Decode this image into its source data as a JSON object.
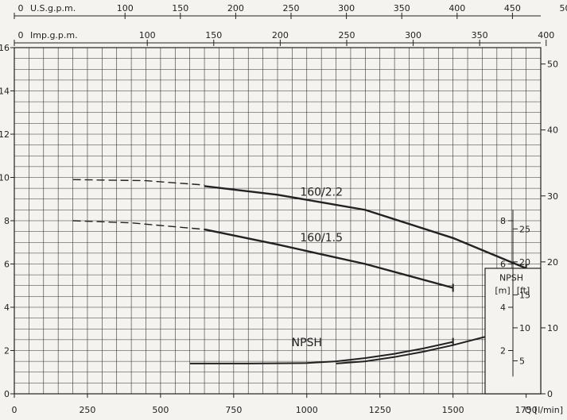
{
  "chart_data": {
    "type": "line",
    "title": "",
    "xlabel": "Q [l/min]",
    "ylabel": "",
    "xlim": [
      0,
      1800
    ],
    "ylim": [
      0,
      16
    ],
    "x_ticks": [
      0,
      250,
      500,
      750,
      1000,
      1250,
      1500,
      1750
    ],
    "y_ticks": [
      0,
      2,
      4,
      6,
      8,
      10,
      12,
      14,
      16
    ],
    "grid": true,
    "right_axis": {
      "ticks": [
        0,
        10,
        20,
        30,
        40,
        50
      ],
      "per_unit_left": 3.28
    },
    "top_axes": [
      {
        "label": "U.S.g.p.m.",
        "ticks": [
          0,
          100,
          150,
          200,
          250,
          300,
          350,
          400,
          450,
          500
        ],
        "lpm_per_unit": 3.785
      },
      {
        "label": "Imp.g.p.m.",
        "ticks": [
          0,
          100,
          150,
          200,
          250,
          300,
          350,
          400
        ],
        "lpm_per_unit": 4.546
      }
    ],
    "npsh_scale": {
      "m_label": "[m]",
      "ft_label": "[ft]",
      "header": "NPSH",
      "m_ticks": [
        2,
        4,
        6,
        8
      ],
      "ft_ticks": [
        5,
        10,
        15,
        20,
        25
      ]
    },
    "series": [
      {
        "name": "160/2.2",
        "dashed_x": [
          200,
          450,
          650
        ],
        "dashed_y": [
          9.9,
          9.85,
          9.65
        ],
        "x": [
          650,
          900,
          1200,
          1500,
          1750
        ],
        "y": [
          9.6,
          9.2,
          8.5,
          7.2,
          5.8
        ]
      },
      {
        "name": "160/1.5",
        "dashed_x": [
          200,
          400,
          650
        ],
        "dashed_y": [
          8.0,
          7.9,
          7.6
        ],
        "x": [
          650,
          900,
          1200,
          1500
        ],
        "y": [
          7.6,
          6.9,
          6.0,
          4.9
        ]
      },
      {
        "name": "NPSH",
        "dashed_x": [],
        "dashed_y": [],
        "x": [
          600,
          800,
          1000,
          1100,
          1200,
          1300,
          1400,
          1500
        ],
        "y": [
          1.4,
          1.4,
          1.42,
          1.5,
          1.65,
          1.85,
          2.1,
          2.4
        ]
      },
      {
        "name": "",
        "dashed_x": [],
        "dashed_y": [],
        "x": [
          1100,
          1200,
          1300,
          1400,
          1500,
          1600,
          1750
        ],
        "y": [
          1.4,
          1.5,
          1.7,
          1.95,
          2.25,
          2.6,
          3.1
        ]
      }
    ]
  }
}
